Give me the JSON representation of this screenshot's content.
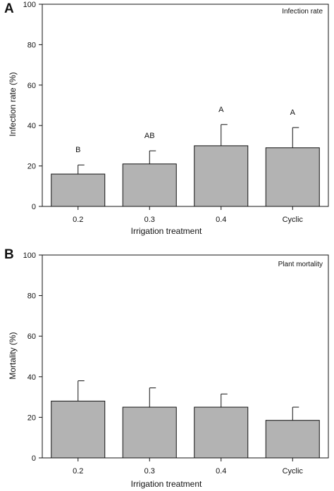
{
  "chart_data": [
    {
      "type": "bar",
      "panel_label": "A",
      "annotation": "Infection rate",
      "xlabel": "Irrigation treatment",
      "ylabel": "Infection rate (%)",
      "ylim": [
        0,
        100
      ],
      "yticks": [
        "0",
        "20",
        "40",
        "60",
        "80",
        "100"
      ],
      "categories": [
        "0.2",
        "0.3",
        "0.4",
        "Cyclic"
      ],
      "values": [
        16,
        21,
        30,
        29
      ],
      "errors": [
        4.5,
        6.5,
        10.5,
        10
      ],
      "significance_labels": [
        "B",
        "AB",
        "A",
        "A"
      ],
      "colors": {
        "bar": "#b3b3b3",
        "axis": "#111111"
      }
    },
    {
      "type": "bar",
      "panel_label": "B",
      "annotation": "Plant mortality",
      "xlabel": "Irrigation treatment",
      "ylabel": "Mortality (%)",
      "ylim": [
        0,
        100
      ],
      "yticks": [
        "0",
        "20",
        "40",
        "60",
        "80",
        "100"
      ],
      "categories": [
        "0.2",
        "0.3",
        "0.4",
        "Cyclic"
      ],
      "values": [
        28,
        25,
        25,
        18.5
      ],
      "errors": [
        10,
        9.5,
        6.5,
        6.5
      ],
      "colors": {
        "bar": "#b3b3b3",
        "axis": "#111111"
      }
    }
  ]
}
